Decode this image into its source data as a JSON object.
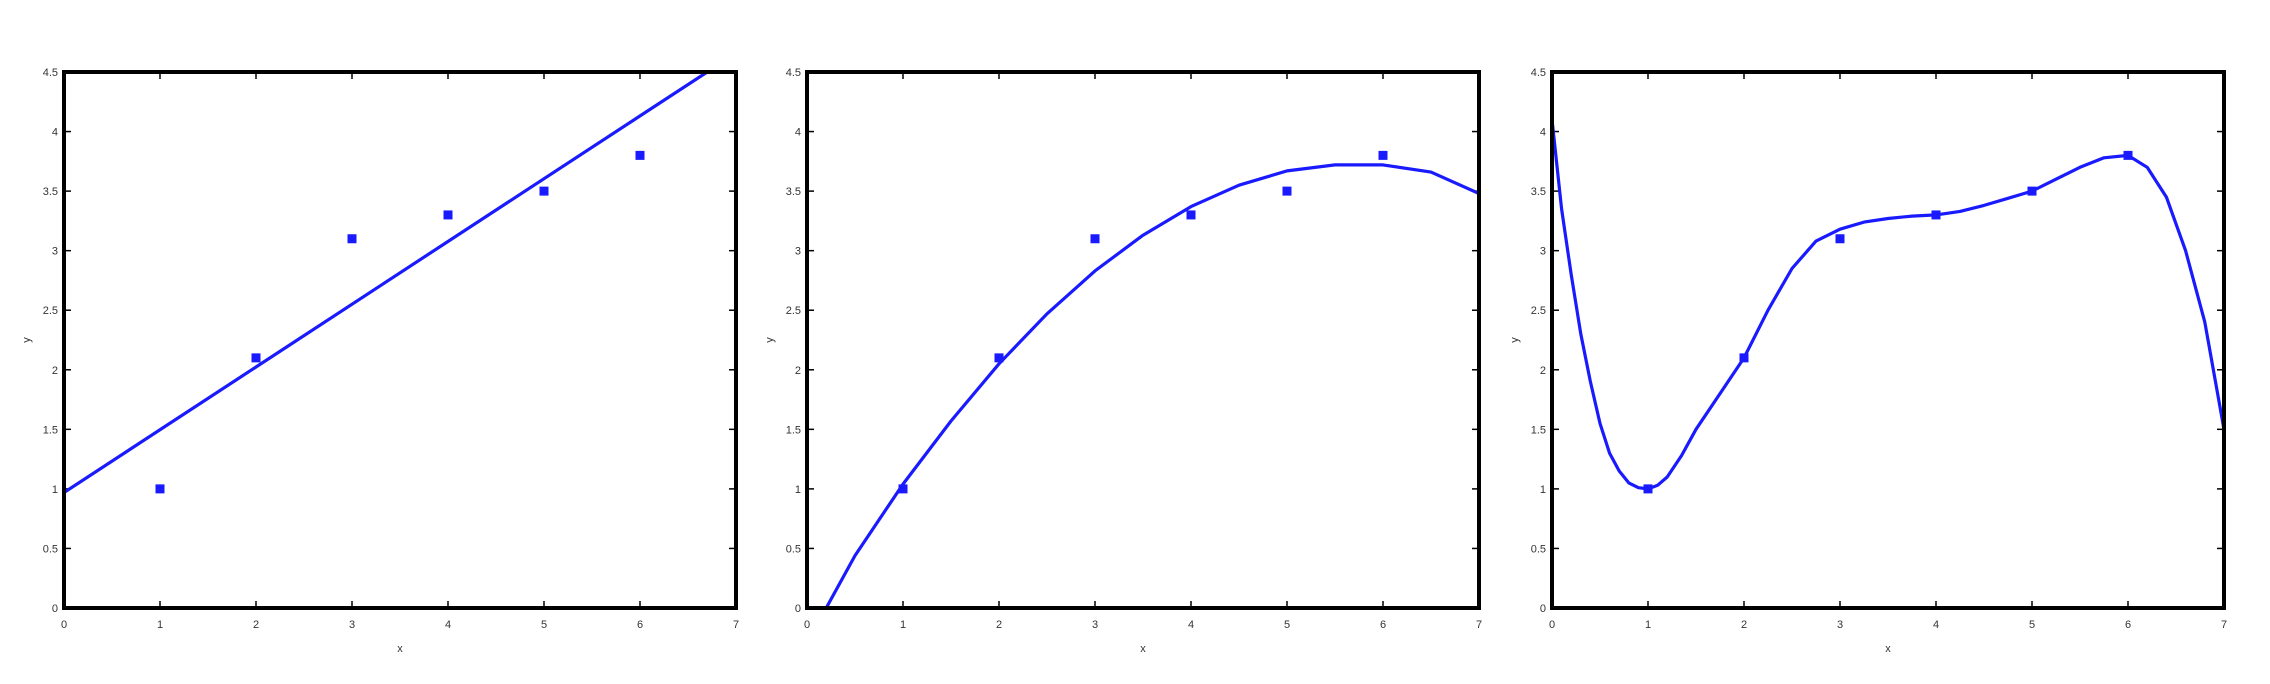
{
  "chart_data": [
    {
      "type": "scatter",
      "xlabel": "x",
      "ylabel": "y",
      "xlim": [
        0,
        7
      ],
      "ylim": [
        0,
        4.5
      ],
      "xticks": [
        "0",
        "1",
        "2",
        "3",
        "4",
        "5",
        "6",
        "7"
      ],
      "yticks": [
        "0",
        "0.5",
        "1",
        "1.5",
        "2",
        "2.5",
        "3",
        "3.5",
        "4",
        "4.5"
      ],
      "points": {
        "x": [
          1,
          2,
          3,
          4,
          5,
          6
        ],
        "y": [
          1.0,
          2.1,
          3.1,
          3.3,
          3.5,
          3.8
        ]
      },
      "fit": {
        "x": [
          0,
          6.7
        ],
        "y": [
          0.97,
          4.5
        ]
      },
      "color": "#1a1aff"
    },
    {
      "type": "scatter",
      "xlabel": "x",
      "ylabel": "y",
      "xlim": [
        0,
        7
      ],
      "ylim": [
        0,
        4.5
      ],
      "xticks": [
        "0",
        "1",
        "2",
        "3",
        "4",
        "5",
        "6",
        "7"
      ],
      "yticks": [
        "0",
        "0.5",
        "1",
        "1.5",
        "2",
        "2.5",
        "3",
        "3.5",
        "4",
        "4.5"
      ],
      "points": {
        "x": [
          1,
          2,
          3,
          4,
          5,
          6
        ],
        "y": [
          1.0,
          2.1,
          3.1,
          3.3,
          3.5,
          3.8
        ]
      },
      "fit": {
        "x": [
          0.2,
          0.5,
          1,
          1.5,
          2,
          2.5,
          3,
          3.5,
          4,
          4.5,
          5,
          5.5,
          6,
          6.5,
          7
        ],
        "y": [
          0.0,
          0.44,
          1.04,
          1.57,
          2.05,
          2.47,
          2.83,
          3.13,
          3.37,
          3.55,
          3.67,
          3.72,
          3.72,
          3.66,
          3.48
        ]
      },
      "color": "#1a1aff"
    },
    {
      "type": "scatter",
      "xlabel": "x",
      "ylabel": "y",
      "xlim": [
        0,
        7
      ],
      "ylim": [
        0,
        4.5
      ],
      "xticks": [
        "0",
        "1",
        "2",
        "3",
        "4",
        "5",
        "6",
        "7"
      ],
      "yticks": [
        "0",
        "0.5",
        "1",
        "1.5",
        "2",
        "2.5",
        "3",
        "3.5",
        "4",
        "4.5"
      ],
      "points": {
        "x": [
          1,
          2,
          3,
          4,
          5,
          6
        ],
        "y": [
          1.0,
          2.1,
          3.1,
          3.3,
          3.5,
          3.8
        ]
      },
      "fit": {
        "x": [
          0,
          0.1,
          0.2,
          0.3,
          0.4,
          0.5,
          0.6,
          0.7,
          0.8,
          0.9,
          1.0,
          1.1,
          1.2,
          1.35,
          1.5,
          1.75,
          2.0,
          2.25,
          2.5,
          2.75,
          3.0,
          3.25,
          3.5,
          3.75,
          4.0,
          4.25,
          4.5,
          4.75,
          5.0,
          5.25,
          5.5,
          5.75,
          6.0,
          6.2,
          6.4,
          6.6,
          6.8,
          6.9,
          7.0
        ],
        "y": [
          4.1,
          3.35,
          2.8,
          2.3,
          1.9,
          1.55,
          1.3,
          1.15,
          1.05,
          1.01,
          1.0,
          1.03,
          1.1,
          1.28,
          1.5,
          1.8,
          2.1,
          2.5,
          2.85,
          3.08,
          3.18,
          3.24,
          3.27,
          3.29,
          3.3,
          3.33,
          3.38,
          3.44,
          3.5,
          3.6,
          3.7,
          3.78,
          3.8,
          3.7,
          3.45,
          3.0,
          2.4,
          1.95,
          1.5
        ]
      },
      "color": "#1a1aff"
    }
  ]
}
